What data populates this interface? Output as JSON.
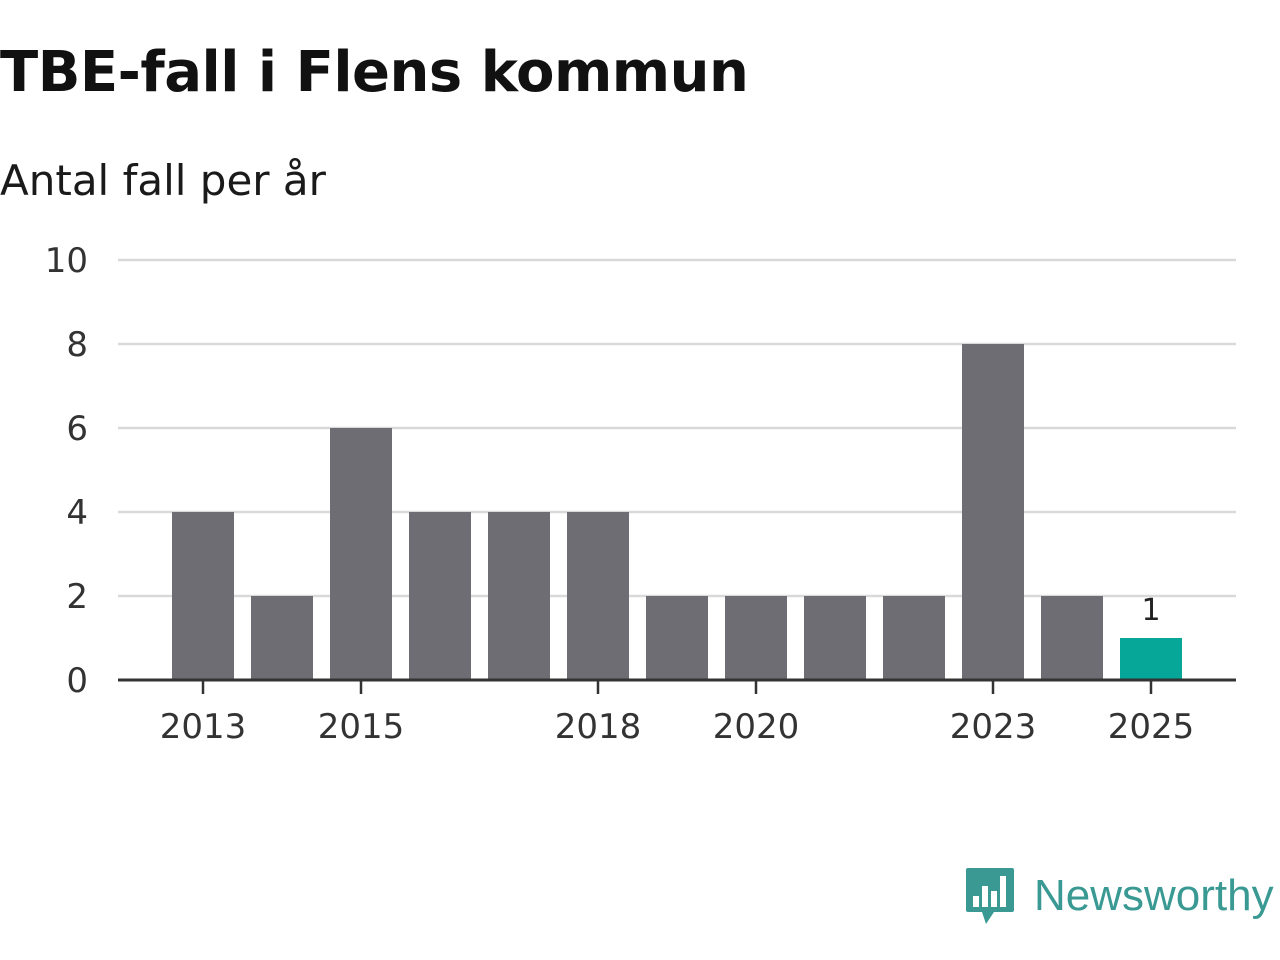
{
  "chart_data": {
    "type": "bar",
    "title": "TBE-fall i Flens kommun",
    "subtitle": "Antal fall per år",
    "categories": [
      "2013",
      "2014",
      "2015",
      "2016",
      "2017",
      "2018",
      "2019",
      "2020",
      "2021",
      "2022",
      "2023",
      "2024",
      "2025"
    ],
    "values": [
      4,
      2,
      6,
      4,
      4,
      4,
      2,
      2,
      2,
      2,
      8,
      2,
      1
    ],
    "x_tick_labels": [
      "2013",
      "2015",
      "2018",
      "2020",
      "2023",
      "2025"
    ],
    "y_ticks": [
      0,
      2,
      4,
      6,
      8,
      10
    ],
    "ylim": [
      0,
      10
    ],
    "xlabel": "",
    "ylabel": "",
    "grid": true,
    "highlight": {
      "category": "2025",
      "label": "1"
    },
    "colors": {
      "bar": "#6e6d73",
      "highlight": "#06a698",
      "grid": "#d9d9d9",
      "axis": "#333333"
    }
  },
  "brand": {
    "name": "Newsworthy",
    "icon": "newsworthy-bar-chart-icon",
    "color": "#3a9a93"
  }
}
